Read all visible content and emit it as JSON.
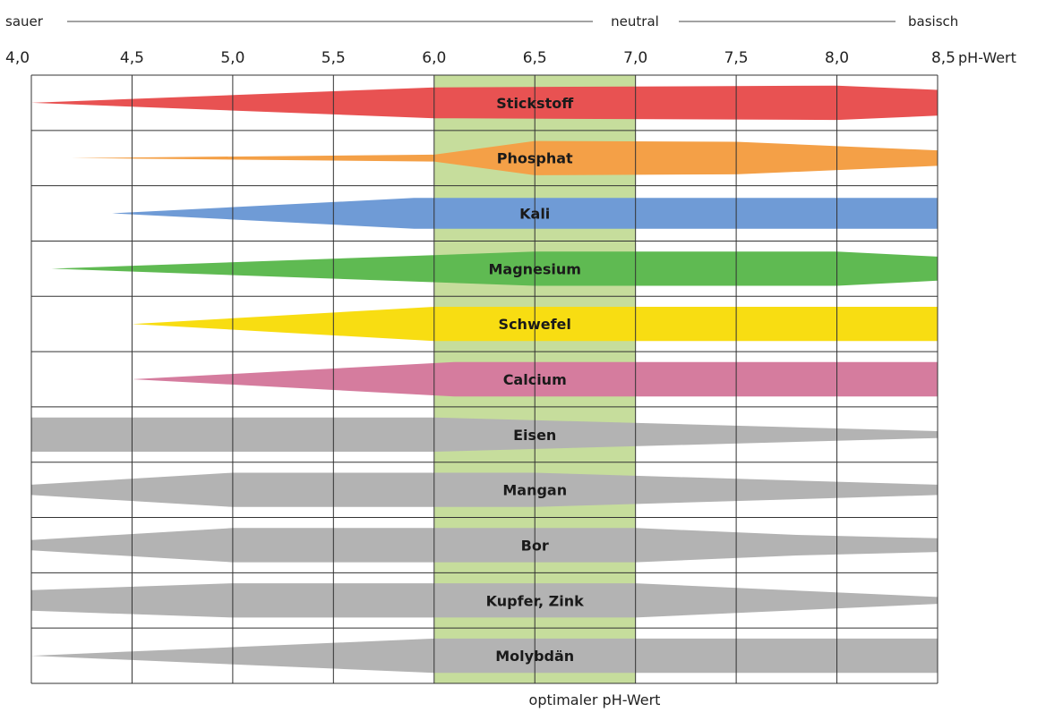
{
  "scale": {
    "left": "sauer",
    "center": "neutral",
    "right": "basisch"
  },
  "x_unit": "pH-Wert",
  "optimal_label": "optimaler pH-Wert",
  "chart_data": {
    "type": "area",
    "title": "",
    "x_ticks": [
      "4,0",
      "4,5",
      "5,0",
      "5,5",
      "6,0",
      "6,5",
      "7,0",
      "7,5",
      "8,0",
      "8,5"
    ],
    "x_range": [
      4.0,
      8.5
    ],
    "optimal_range": [
      6.0,
      7.0
    ],
    "colors": {
      "optimal_band": "#c6dd9c",
      "grid": "#333333"
    },
    "series": [
      {
        "name": "Stickstoff",
        "color": "#e85252",
        "profile": [
          [
            4.0,
            0.0
          ],
          [
            6.0,
            0.9
          ],
          [
            8.0,
            1.0
          ],
          [
            8.5,
            0.75
          ]
        ]
      },
      {
        "name": "Phosphat",
        "color": "#f4a047",
        "profile": [
          [
            4.2,
            0.0
          ],
          [
            6.0,
            0.2
          ],
          [
            6.5,
            1.0
          ],
          [
            7.5,
            0.95
          ],
          [
            8.5,
            0.45
          ]
        ]
      },
      {
        "name": "Kali",
        "color": "#6f9bd6",
        "profile": [
          [
            4.4,
            0.0
          ],
          [
            5.9,
            0.9
          ],
          [
            8.5,
            0.9
          ]
        ]
      },
      {
        "name": "Magnesium",
        "color": "#5fba52",
        "profile": [
          [
            4.1,
            0.0
          ],
          [
            6.5,
            1.0
          ],
          [
            8.0,
            1.0
          ],
          [
            8.5,
            0.7
          ]
        ]
      },
      {
        "name": "Schwefel",
        "color": "#f8dd12",
        "profile": [
          [
            4.5,
            0.0
          ],
          [
            6.0,
            1.0
          ],
          [
            8.5,
            1.0
          ]
        ]
      },
      {
        "name": "Calcium",
        "color": "#d57c9e",
        "profile": [
          [
            4.5,
            0.0
          ],
          [
            6.1,
            1.0
          ],
          [
            8.5,
            1.0
          ]
        ]
      },
      {
        "name": "Eisen",
        "color": "#b3b3b3",
        "profile": [
          [
            4.0,
            1.0
          ],
          [
            6.0,
            1.0
          ],
          [
            8.5,
            0.2
          ]
        ]
      },
      {
        "name": "Mangan",
        "color": "#b3b3b3",
        "profile": [
          [
            4.0,
            0.3
          ],
          [
            5.0,
            1.0
          ],
          [
            6.5,
            1.0
          ],
          [
            8.5,
            0.3
          ]
        ]
      },
      {
        "name": "Bor",
        "color": "#b3b3b3",
        "profile": [
          [
            4.0,
            0.3
          ],
          [
            5.0,
            1.0
          ],
          [
            7.0,
            1.0
          ],
          [
            7.8,
            0.6
          ],
          [
            8.5,
            0.4
          ]
        ]
      },
      {
        "name": "Kupfer, Zink",
        "color": "#b3b3b3",
        "profile": [
          [
            4.0,
            0.6
          ],
          [
            5.0,
            1.0
          ],
          [
            7.0,
            1.0
          ],
          [
            8.5,
            0.2
          ]
        ]
      },
      {
        "name": "Molybdän",
        "color": "#b3b3b3",
        "profile": [
          [
            4.0,
            0.0
          ],
          [
            6.0,
            1.0
          ],
          [
            8.5,
            1.0
          ]
        ]
      }
    ]
  }
}
